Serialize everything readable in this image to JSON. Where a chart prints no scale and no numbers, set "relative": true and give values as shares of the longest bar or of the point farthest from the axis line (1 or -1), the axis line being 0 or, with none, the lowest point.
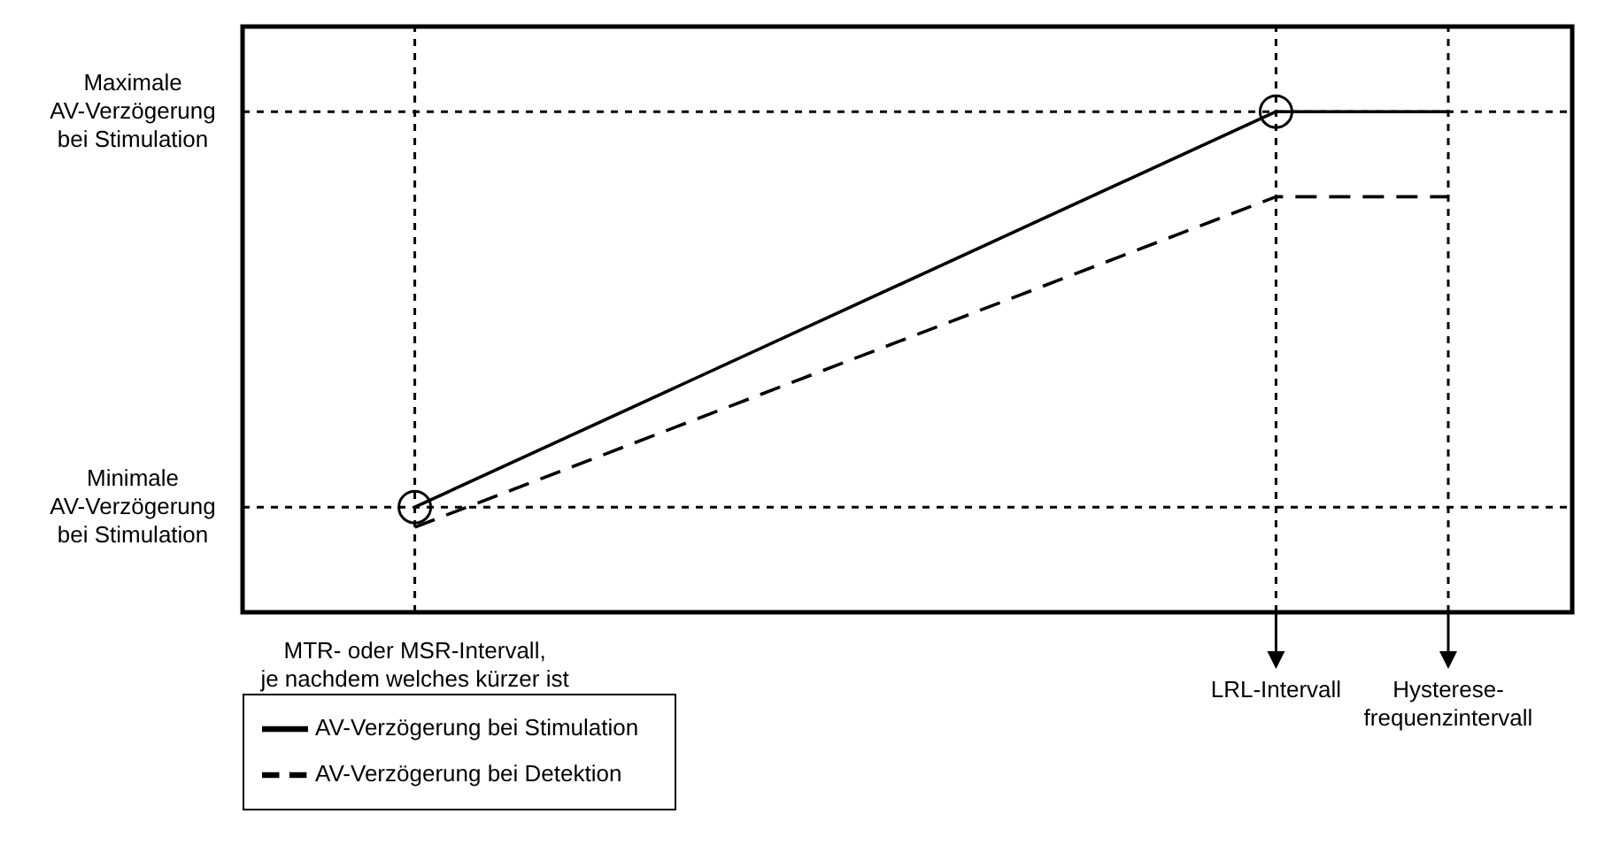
{
  "chart_data": {
    "type": "line",
    "relative": true,
    "categories": [
      null,
      "MTR- oder MSR-Intervall, je nachdem welches kürzer ist",
      null,
      null,
      null,
      null,
      "LRL-Intervall",
      "Hysterese-frequenzintervall"
    ],
    "series": [
      {
        "name": "AV-Verzögerung bei Stimulation",
        "color": "#000000",
        "line_style": "solid",
        "marker": "circle",
        "values": [
          null,
          0.21,
          null,
          null,
          null,
          null,
          1,
          null
        ]
      },
      {
        "color": "#000000",
        "line_style": "solid",
        "marker": "none",
        "values": [
          null,
          null,
          null,
          null,
          null,
          null,
          1,
          1
        ]
      },
      {
        "name": "AV-Verzögerung bei Detektion",
        "color": "#000000",
        "line_style": "dashed",
        "marker": "none",
        "values": [
          null,
          0.17,
          null,
          null,
          null,
          null,
          0.83,
          0.83
        ]
      }
    ],
    "ref_lines": [
      {
        "axis": "y",
        "value": 1,
        "label": "Maximale AV-Verzögerung bei Stimulation",
        "color": "#000000",
        "line_style": "dotted"
      },
      {
        "axis": "y",
        "value": 0.21,
        "label": "Minimale AV-Verzögerung bei Stimulation",
        "color": "#000000",
        "line_style": "dotted"
      },
      {
        "axis": "x",
        "value": "MTR- oder MSR-Intervall, je nachdem welches kürzer ist",
        "color": "#000000",
        "line_style": "dotted"
      },
      {
        "axis": "x",
        "value": "LRL-Intervall",
        "color": "#000000",
        "line_style": "dotted"
      },
      {
        "axis": "x",
        "value": "Hysterese-frequenzintervall",
        "color": "#000000",
        "line_style": "dotted"
      }
    ],
    "legend": "bottom left"
  }
}
